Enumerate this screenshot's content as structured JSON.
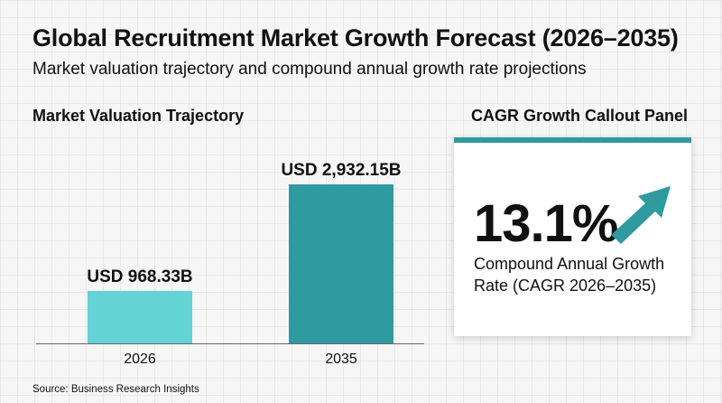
{
  "header": {
    "title": "Global Recruitment Market Growth Forecast (2026–2035)",
    "subtitle": "Market valuation trajectory and compound annual growth rate projections"
  },
  "left_section": {
    "title": "Market Valuation Trajectory"
  },
  "right_section": {
    "title": "CAGR Growth Callout Panel"
  },
  "cagr_panel": {
    "value": "13.1%",
    "label": "Compound Annual Growth Rate (CAGR 2026–2035)",
    "icon": "trend-up-arrow-icon",
    "accent_color": "#2f9aa0"
  },
  "source": "Source: Business Research Insights",
  "chart_data": {
    "type": "bar",
    "categories": [
      "2026",
      "2035"
    ],
    "values": [
      968.33,
      2932.15
    ],
    "data_labels": [
      "USD 968.33B",
      "USD 2,932.15B"
    ],
    "unit": "USD billion",
    "ylim": [
      0,
      3200
    ],
    "grid": false,
    "colors": [
      "#64d3d5",
      "#2f9aa0"
    ]
  }
}
